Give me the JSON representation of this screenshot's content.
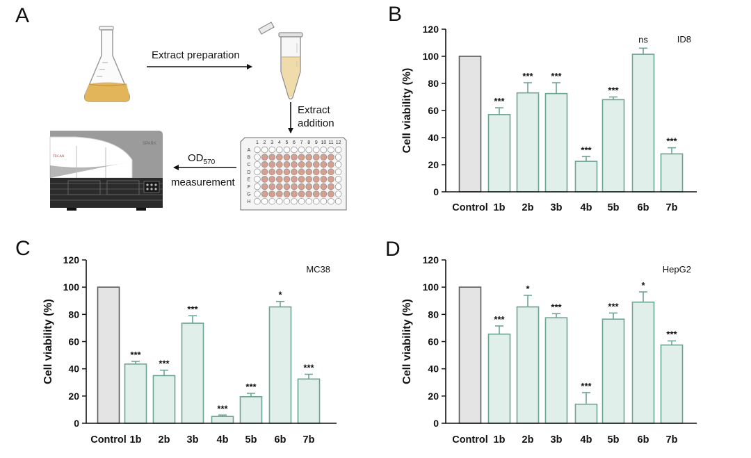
{
  "panel_a": {
    "letter": "A",
    "step_extract_preparation": "Extract preparation",
    "step_extract_addition_line1": "Extract",
    "step_extract_addition_line2": "addition",
    "step_od_main": "OD",
    "step_od_sub": "570",
    "step_measurement": "measurement",
    "plate_columns": [
      "1",
      "2",
      "3",
      "4",
      "5",
      "6",
      "7",
      "8",
      "9",
      "10",
      "11",
      "12"
    ],
    "plate_rows": [
      "A",
      "B",
      "C",
      "D",
      "E",
      "F",
      "G",
      "H"
    ],
    "instrument_brand": "SPARK",
    "instrument_logo": "TECAN",
    "colors": {
      "liquid": "#e2b55a",
      "well_filled": "#d7a08e",
      "reader_gray": "#9b9b9b",
      "reader_dark": "#2b2b2b"
    }
  },
  "chart_data": [
    {
      "type": "bar",
      "panel": "B",
      "legend": "ID8",
      "categories": [
        "Control",
        "1b",
        "2b",
        "3b",
        "4b",
        "5b",
        "6b",
        "7b"
      ],
      "values": [
        100,
        57,
        73,
        72.5,
        22.5,
        68,
        101.5,
        28
      ],
      "errors": [
        0,
        5,
        7.5,
        8,
        3.5,
        2,
        4.5,
        4.5
      ],
      "significance": [
        "",
        "***",
        "***",
        "***",
        "***",
        "***",
        "ns",
        "***"
      ],
      "xlabel": "",
      "ylabel": "Cell viability (%)",
      "ylim": [
        0,
        120
      ],
      "yticks": [
        0,
        20,
        40,
        60,
        80,
        100,
        120
      ],
      "legend_position": "top-right"
    },
    {
      "type": "bar",
      "panel": "C",
      "legend": "MC38",
      "categories": [
        "Control",
        "1b",
        "2b",
        "3b",
        "4b",
        "5b",
        "6b",
        "7b"
      ],
      "values": [
        100,
        43.5,
        35,
        73.5,
        5,
        19.5,
        85.5,
        32.5
      ],
      "errors": [
        0,
        2,
        4,
        5.5,
        1,
        2.5,
        4,
        3.5
      ],
      "significance": [
        "",
        "***",
        "***",
        "***",
        "***",
        "***",
        "*",
        "***"
      ],
      "xlabel": "",
      "ylabel": "Cell viability (%)",
      "ylim": [
        0,
        120
      ],
      "yticks": [
        0,
        20,
        40,
        60,
        80,
        100,
        120
      ],
      "legend_position": "top-right"
    },
    {
      "type": "bar",
      "panel": "D",
      "legend": "HepG2",
      "categories": [
        "Control",
        "1b",
        "2b",
        "3b",
        "4b",
        "5b",
        "6b",
        "7b"
      ],
      "values": [
        100,
        65.5,
        85.5,
        77.5,
        14,
        76.5,
        89,
        57.5
      ],
      "errors": [
        0,
        6,
        8.5,
        3,
        8.5,
        4.5,
        7.5,
        3
      ],
      "significance": [
        "",
        "***",
        "*",
        "***",
        "***",
        "***",
        "*",
        "***"
      ],
      "xlabel": "",
      "ylabel": "Cell viability (%)",
      "ylim": [
        0,
        120
      ],
      "yticks": [
        0,
        20,
        40,
        60,
        80,
        100,
        120
      ],
      "legend_position": "top-right"
    }
  ],
  "style": {
    "control_fill": "#e4e4e4",
    "control_stroke": "#5a5a5a",
    "bar_fill": "#e1efea",
    "bar_stroke": "#6aa493",
    "axis_color": "#111111"
  }
}
